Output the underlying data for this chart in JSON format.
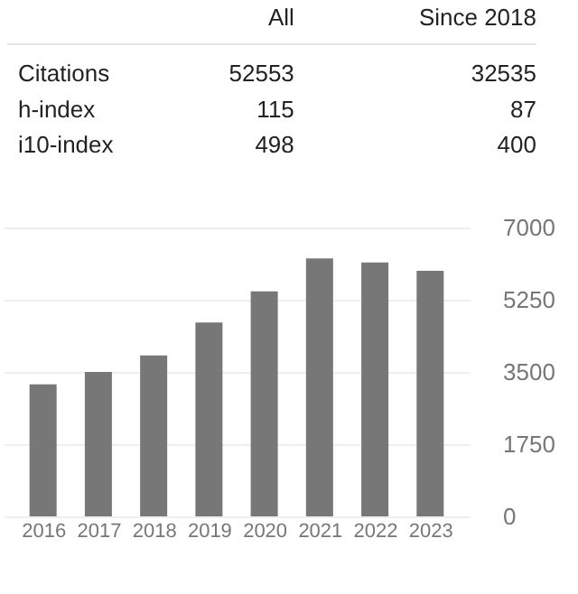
{
  "chart_data": [
    {
      "type": "other",
      "categories": [
        "All",
        "Since 2018"
      ],
      "y_categories": [
        "Citations",
        "h-index",
        "i10-index"
      ],
      "annotations": [
        "52553",
        "32535",
        "115",
        "87",
        "498",
        "400"
      ]
    },
    {
      "type": "bar",
      "categories": [
        "2016",
        "2017",
        "2018",
        "2019",
        "2020",
        "2021",
        "2022",
        "2023"
      ],
      "values": [
        3200,
        3500,
        3900,
        4700,
        5450,
        6250,
        6150,
        5950
      ],
      "color": "#777777",
      "ylim": [
        0,
        7000
      ],
      "yticks": [
        0,
        1750,
        3500,
        5250,
        7000
      ],
      "grid": "y"
    }
  ]
}
